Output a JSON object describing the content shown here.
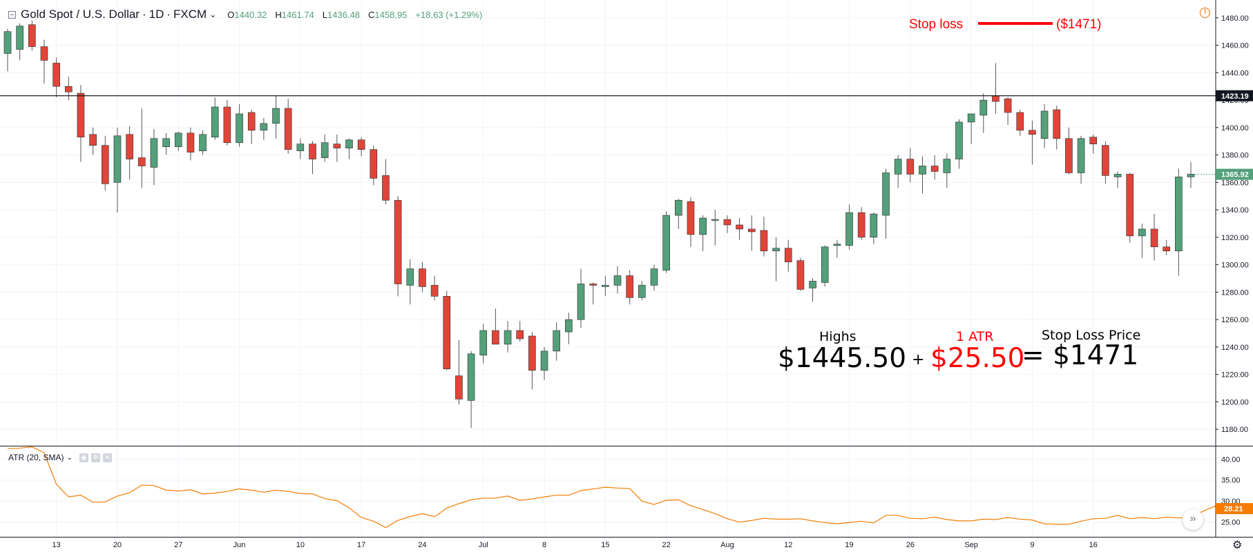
{
  "legend": {
    "symbol": "Gold Spot / U.S. Dollar",
    "interval": "1D",
    "exchange": "FXCM",
    "open_label": "O",
    "open": "1440.32",
    "high_label": "H",
    "high": "1461.74",
    "low_label": "L",
    "low": "1436.48",
    "close_label": "C",
    "close": "1458.95",
    "change": "+18.63 (+1.29%)"
  },
  "indicator_legend": {
    "label": "ATR (20, SMA)"
  },
  "annotations": {
    "stop_loss_label": "Stop loss",
    "stop_loss_value": "($1471)",
    "highs_label": "Highs",
    "highs_value": "$1445.50",
    "plus": "+",
    "atr_label": "1 ATR",
    "atr_value": "$25.50",
    "equals_value": "= $1471",
    "stop_price_label": "Stop Loss Price"
  },
  "colors": {
    "up": "#53a07a",
    "down": "#e0453a",
    "atr_line": "#f57c00",
    "annotation_red": "#ff0000",
    "horizontal_line": "#131722"
  },
  "icons": {
    "alert": "exclamation-circle-icon",
    "scroll": "double-chevron-right-icon",
    "settings": "gear-icon"
  },
  "chart_data": [
    {
      "type": "candlestick",
      "y_axis_ticks": [
        1180,
        1200,
        1220,
        1240,
        1260,
        1280,
        1300,
        1320,
        1340,
        1360,
        1380,
        1400,
        1420,
        1440,
        1460,
        1480
      ],
      "ylim": [
        1168,
        1493
      ],
      "x_tick_labels": [
        "13",
        "20",
        "27",
        "Jun",
        "10",
        "17",
        "24",
        "Jul",
        "8",
        "15",
        "22",
        "Aug",
        "12",
        "19",
        "26",
        "Sep",
        "9",
        "16"
      ],
      "horizontal_line": {
        "value": 1423.19,
        "label": "1423.19"
      },
      "last_price": {
        "value": 1365.92,
        "label": "1365.92"
      },
      "candles": [
        [
          1454,
          1472,
          1441,
          1470
        ],
        [
          1457,
          1476,
          1449,
          1474
        ],
        [
          1475,
          1478,
          1456,
          1459
        ],
        [
          1459,
          1464,
          1432,
          1449
        ],
        [
          1447,
          1451,
          1422,
          1430
        ],
        [
          1430,
          1437,
          1420,
          1426
        ],
        [
          1425,
          1431,
          1375,
          1393
        ],
        [
          1395,
          1400,
          1380,
          1387
        ],
        [
          1387,
          1394,
          1354,
          1359
        ],
        [
          1360,
          1400,
          1338,
          1394
        ],
        [
          1395,
          1401,
          1362,
          1377
        ],
        [
          1378,
          1414,
          1356,
          1372
        ],
        [
          1371,
          1399,
          1358,
          1392
        ],
        [
          1386,
          1396,
          1380,
          1392
        ],
        [
          1386,
          1397,
          1383,
          1396
        ],
        [
          1396,
          1400,
          1376,
          1382
        ],
        [
          1383,
          1398,
          1380,
          1395
        ],
        [
          1393,
          1422,
          1391,
          1415
        ],
        [
          1415,
          1420,
          1387,
          1389
        ],
        [
          1389,
          1417,
          1386,
          1410
        ],
        [
          1411,
          1413,
          1388,
          1398
        ],
        [
          1398,
          1407,
          1391,
          1403
        ],
        [
          1403,
          1423,
          1392,
          1414
        ],
        [
          1414,
          1421,
          1381,
          1384
        ],
        [
          1383,
          1392,
          1377,
          1388
        ],
        [
          1388,
          1390,
          1366,
          1377
        ],
        [
          1378,
          1395,
          1375,
          1389
        ],
        [
          1388,
          1395,
          1375,
          1385
        ],
        [
          1385,
          1392,
          1377,
          1391
        ],
        [
          1391,
          1393,
          1379,
          1384
        ],
        [
          1384,
          1387,
          1358,
          1363
        ],
        [
          1365,
          1377,
          1344,
          1347
        ],
        [
          1347,
          1350,
          1277,
          1286
        ],
        [
          1285,
          1304,
          1271,
          1297
        ],
        [
          1297,
          1302,
          1280,
          1284
        ],
        [
          1285,
          1292,
          1274,
          1277
        ],
        [
          1277,
          1281,
          1223,
          1224
        ],
        [
          1219,
          1245,
          1198,
          1202
        ],
        [
          1201,
          1237,
          1181,
          1235
        ],
        [
          1234,
          1257,
          1228,
          1252
        ],
        [
          1252,
          1268,
          1242,
          1242
        ],
        [
          1242,
          1259,
          1236,
          1252
        ],
        [
          1252,
          1259,
          1244,
          1246
        ],
        [
          1248,
          1251,
          1209,
          1223
        ],
        [
          1223,
          1240,
          1216,
          1237
        ],
        [
          1237,
          1258,
          1230,
          1252
        ],
        [
          1251,
          1265,
          1242,
          1260
        ],
        [
          1260,
          1297,
          1254,
          1286
        ],
        [
          1286,
          1287,
          1271,
          1285
        ],
        [
          1284,
          1292,
          1277,
          1285
        ],
        [
          1285,
          1299,
          1279,
          1292
        ],
        [
          1292,
          1296,
          1271,
          1276
        ],
        [
          1276,
          1288,
          1274,
          1285
        ],
        [
          1285,
          1300,
          1281,
          1297
        ],
        [
          1296,
          1339,
          1294,
          1336
        ],
        [
          1336,
          1348,
          1326,
          1347
        ],
        [
          1346,
          1349,
          1313,
          1322
        ],
        [
          1322,
          1336,
          1310,
          1334
        ],
        [
          1333,
          1340,
          1314,
          1333
        ],
        [
          1333,
          1336,
          1323,
          1329
        ],
        [
          1329,
          1334,
          1318,
          1326
        ],
        [
          1326,
          1336,
          1310,
          1324
        ],
        [
          1325,
          1335,
          1306,
          1310
        ],
        [
          1310,
          1320,
          1288,
          1312
        ],
        [
          1312,
          1318,
          1295,
          1302
        ],
        [
          1303,
          1305,
          1281,
          1282
        ],
        [
          1283,
          1290,
          1273,
          1288
        ],
        [
          1287,
          1314,
          1284,
          1313
        ],
        [
          1314,
          1318,
          1305,
          1315
        ],
        [
          1314,
          1344,
          1311,
          1338
        ],
        [
          1338,
          1342,
          1318,
          1320
        ],
        [
          1320,
          1338,
          1315,
          1337
        ],
        [
          1336,
          1370,
          1319,
          1367
        ],
        [
          1366,
          1380,
          1356,
          1377
        ],
        [
          1377,
          1385,
          1360,
          1366
        ],
        [
          1366,
          1379,
          1352,
          1372
        ],
        [
          1372,
          1380,
          1362,
          1368
        ],
        [
          1367,
          1381,
          1356,
          1377
        ],
        [
          1377,
          1406,
          1370,
          1404
        ],
        [
          1404,
          1410,
          1388,
          1410
        ],
        [
          1409,
          1425,
          1396,
          1420
        ],
        [
          1423,
          1447,
          1410,
          1419
        ],
        [
          1421,
          1422,
          1402,
          1411
        ],
        [
          1411,
          1413,
          1394,
          1398
        ],
        [
          1398,
          1405,
          1373,
          1395
        ],
        [
          1392,
          1417,
          1385,
          1412
        ],
        [
          1413,
          1416,
          1384,
          1392
        ],
        [
          1392,
          1400,
          1366,
          1367
        ],
        [
          1367,
          1394,
          1359,
          1392
        ],
        [
          1393,
          1395,
          1381,
          1388
        ],
        [
          1387,
          1390,
          1359,
          1365
        ],
        [
          1364,
          1368,
          1356,
          1366
        ],
        [
          1366,
          1367,
          1316,
          1321
        ],
        [
          1321,
          1330,
          1305,
          1326
        ],
        [
          1326,
          1337,
          1303,
          1313
        ],
        [
          1313,
          1318,
          1307,
          1310
        ],
        [
          1310,
          1370,
          1292,
          1364
        ],
        [
          1364,
          1375,
          1356,
          1366
        ]
      ]
    },
    {
      "type": "line",
      "name": "ATR (20, SMA)",
      "y_axis_ticks": [
        25,
        30,
        35,
        40
      ],
      "ylim": [
        21.5,
        43
      ],
      "last_value": {
        "value": 28.21,
        "label": "28.21"
      },
      "values": [
        42.5,
        42.6,
        42.9,
        41.5,
        34.0,
        31.0,
        31.4,
        29.7,
        29.8,
        31.2,
        32.0,
        33.8,
        33.7,
        32.6,
        32.4,
        32.7,
        31.7,
        31.9,
        32.3,
        32.9,
        32.6,
        32.1,
        32.6,
        32.3,
        31.8,
        31.7,
        30.6,
        30.1,
        28.4,
        26.1,
        25.2,
        23.7,
        25.4,
        26.3,
        27.0,
        26.3,
        28.3,
        29.4,
        30.3,
        30.7,
        30.7,
        31.2,
        30.2,
        30.5,
        31.0,
        31.4,
        31.4,
        32.5,
        32.9,
        33.3,
        33.1,
        33.0,
        30.0,
        29.2,
        30.2,
        30.3,
        28.9,
        28.0,
        27.0,
        25.8,
        25.0,
        25.4,
        25.9,
        25.7,
        25.7,
        25.8,
        25.3,
        24.9,
        24.6,
        24.9,
        25.2,
        24.8,
        26.6,
        26.6,
        25.9,
        25.8,
        26.2,
        25.6,
        25.3,
        25.3,
        25.7,
        25.6,
        26.1,
        25.7,
        25.5,
        24.6,
        24.5,
        24.5,
        25.2,
        25.8,
        25.9,
        26.6,
        25.8,
        26.1,
        25.8,
        26.2,
        26.0,
        26.1,
        27.6,
        28.8,
        28.2
      ]
    }
  ]
}
